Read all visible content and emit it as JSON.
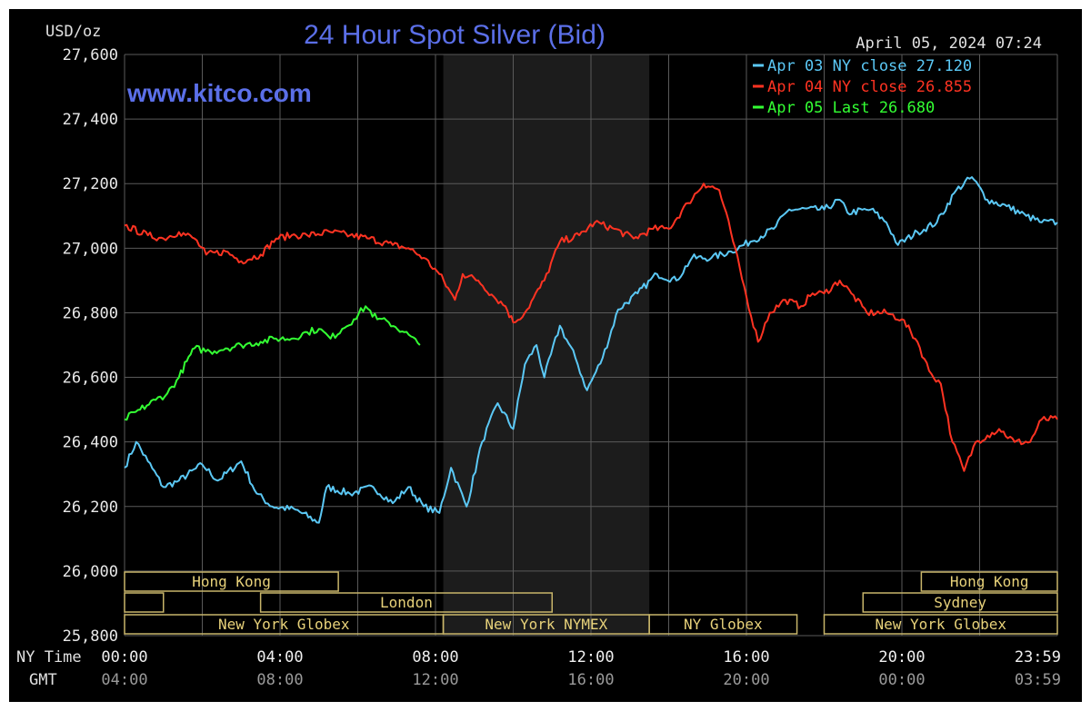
{
  "chart_data": {
    "type": "line",
    "title": "24 Hour Spot Silver (Bid)",
    "unit_label": "USD/oz",
    "watermark": "www.kitco.com",
    "timestamp": "April 05, 2024 07:24",
    "ylim": [
      25.8,
      27.6
    ],
    "y_ticks": [
      "27,600",
      "27,400",
      "27,200",
      "27,000",
      "26,800",
      "26,600",
      "26,400",
      "26,200",
      "26,000",
      "25,800"
    ],
    "x_range_hours": [
      0,
      24
    ],
    "x_ticks_ny": [
      "00:00",
      "04:00",
      "08:00",
      "12:00",
      "16:00",
      "20:00",
      "23:59"
    ],
    "x_ticks_gmt": [
      "04:00",
      "08:00",
      "12:00",
      "16:00",
      "20:00",
      "00:00",
      "03:59"
    ],
    "x_tick_hours": [
      0,
      4,
      8,
      12,
      16,
      20,
      24
    ],
    "row_labels": {
      "ny": "NY Time",
      "gmt": "GMT"
    },
    "grid": true,
    "legend_position": "top-right",
    "shaded_hours": [
      8.2,
      13.5
    ],
    "series": [
      {
        "name": "Apr 03 NY close 27.120",
        "color": "#5bc8f5",
        "points": [
          [
            0,
            26.32
          ],
          [
            0.3,
            26.4
          ],
          [
            0.6,
            26.34
          ],
          [
            1.0,
            26.26
          ],
          [
            1.4,
            26.28
          ],
          [
            2.0,
            26.33
          ],
          [
            2.4,
            26.28
          ],
          [
            3.0,
            26.34
          ],
          [
            3.4,
            26.24
          ],
          [
            3.8,
            26.2
          ],
          [
            4.4,
            26.19
          ],
          [
            5.0,
            26.15
          ],
          [
            5.2,
            26.26
          ],
          [
            5.8,
            26.24
          ],
          [
            6.4,
            26.26
          ],
          [
            6.9,
            26.21
          ],
          [
            7.3,
            26.26
          ],
          [
            7.7,
            26.2
          ],
          [
            8.1,
            26.18
          ],
          [
            8.4,
            26.32
          ],
          [
            8.8,
            26.2
          ],
          [
            9.2,
            26.4
          ],
          [
            9.6,
            26.52
          ],
          [
            10.0,
            26.44
          ],
          [
            10.3,
            26.64
          ],
          [
            10.6,
            26.7
          ],
          [
            10.8,
            26.6
          ],
          [
            11.2,
            26.76
          ],
          [
            11.6,
            26.66
          ],
          [
            11.9,
            26.56
          ],
          [
            12.3,
            26.66
          ],
          [
            12.7,
            26.81
          ],
          [
            13.2,
            26.86
          ],
          [
            13.7,
            26.92
          ],
          [
            14.2,
            26.9
          ],
          [
            14.6,
            26.97
          ],
          [
            15.1,
            26.97
          ],
          [
            15.6,
            26.99
          ],
          [
            16.1,
            27.02
          ],
          [
            16.7,
            27.06
          ],
          [
            17.1,
            27.12
          ],
          [
            18.0,
            27.12
          ],
          [
            18.4,
            27.15
          ],
          [
            18.6,
            27.11
          ],
          [
            19.2,
            27.12
          ],
          [
            19.6,
            27.08
          ],
          [
            19.9,
            27.01
          ],
          [
            20.4,
            27.05
          ],
          [
            20.9,
            27.08
          ],
          [
            21.4,
            27.18
          ],
          [
            21.8,
            27.22
          ],
          [
            22.2,
            27.15
          ],
          [
            22.7,
            27.13
          ],
          [
            23.2,
            27.1
          ],
          [
            23.6,
            27.08
          ],
          [
            24.0,
            27.08
          ]
        ]
      },
      {
        "name": "Apr 04 NY close 26.855",
        "color": "#ff3322",
        "points": [
          [
            0,
            27.07
          ],
          [
            0.6,
            27.04
          ],
          [
            1.0,
            27.03
          ],
          [
            1.4,
            27.05
          ],
          [
            1.8,
            27.03
          ],
          [
            2.1,
            26.98
          ],
          [
            2.6,
            26.99
          ],
          [
            3.0,
            26.96
          ],
          [
            3.5,
            26.98
          ],
          [
            3.9,
            27.03
          ],
          [
            4.3,
            27.04
          ],
          [
            4.7,
            27.04
          ],
          [
            5.3,
            27.05
          ],
          [
            5.8,
            27.04
          ],
          [
            6.3,
            27.03
          ],
          [
            6.9,
            27.01
          ],
          [
            7.3,
            27.0
          ],
          [
            7.7,
            26.97
          ],
          [
            8.1,
            26.92
          ],
          [
            8.5,
            26.84
          ],
          [
            8.7,
            26.92
          ],
          [
            9.1,
            26.9
          ],
          [
            9.5,
            26.85
          ],
          [
            9.8,
            26.82
          ],
          [
            10.0,
            26.77
          ],
          [
            10.3,
            26.8
          ],
          [
            10.8,
            26.9
          ],
          [
            11.2,
            27.02
          ],
          [
            11.7,
            27.04
          ],
          [
            12.1,
            27.08
          ],
          [
            12.6,
            27.06
          ],
          [
            13.1,
            27.03
          ],
          [
            13.6,
            27.06
          ],
          [
            14.0,
            27.06
          ],
          [
            14.5,
            27.14
          ],
          [
            14.9,
            27.2
          ],
          [
            15.3,
            27.18
          ],
          [
            15.6,
            27.05
          ],
          [
            16.0,
            26.85
          ],
          [
            16.3,
            26.71
          ],
          [
            16.6,
            26.8
          ],
          [
            17.0,
            26.84
          ],
          [
            17.4,
            26.82
          ],
          [
            17.7,
            26.86
          ],
          [
            18.0,
            26.86
          ],
          [
            18.4,
            26.9
          ],
          [
            18.7,
            26.86
          ],
          [
            19.1,
            26.8
          ],
          [
            19.6,
            26.8
          ],
          [
            20.0,
            26.78
          ],
          [
            20.4,
            26.71
          ],
          [
            20.7,
            26.62
          ],
          [
            21.0,
            26.58
          ],
          [
            21.3,
            26.4
          ],
          [
            21.6,
            26.31
          ],
          [
            21.9,
            26.4
          ],
          [
            22.2,
            26.42
          ],
          [
            22.5,
            26.44
          ],
          [
            22.9,
            26.4
          ],
          [
            23.3,
            26.4
          ],
          [
            23.6,
            26.47
          ],
          [
            24.0,
            26.47
          ]
        ]
      },
      {
        "name": "Apr 05 Last 26.680",
        "color": "#33ff33",
        "points": [
          [
            0,
            26.47
          ],
          [
            0.4,
            26.5
          ],
          [
            0.8,
            26.53
          ],
          [
            1.1,
            26.55
          ],
          [
            1.4,
            26.6
          ],
          [
            1.6,
            26.65
          ],
          [
            1.8,
            26.69
          ],
          [
            2.2,
            26.68
          ],
          [
            2.6,
            26.69
          ],
          [
            3.0,
            26.7
          ],
          [
            3.5,
            26.71
          ],
          [
            3.9,
            26.72
          ],
          [
            4.3,
            26.72
          ],
          [
            4.7,
            26.74
          ],
          [
            5.0,
            26.75
          ],
          [
            5.3,
            26.72
          ],
          [
            5.6,
            26.75
          ],
          [
            5.9,
            26.78
          ],
          [
            6.2,
            26.82
          ],
          [
            6.5,
            26.78
          ],
          [
            6.8,
            26.77
          ],
          [
            7.2,
            26.74
          ],
          [
            7.6,
            26.7
          ]
        ]
      }
    ],
    "sessions": [
      {
        "label": "Hong Kong",
        "row": 0,
        "start": 0.0,
        "end": 5.5
      },
      {
        "label": "Hong Kong",
        "row": 0,
        "start": 20.5,
        "end": 24.0
      },
      {
        "label": "",
        "row": 1,
        "start": 0.0,
        "end": 1.0
      },
      {
        "label": "London",
        "row": 1,
        "start": 3.5,
        "end": 11.0
      },
      {
        "label": "Sydney",
        "row": 1,
        "start": 19.0,
        "end": 24.0
      },
      {
        "label": "New York Globex",
        "row": 2,
        "start": 0.0,
        "end": 8.2
      },
      {
        "label": "New York NYMEX",
        "row": 2,
        "start": 8.2,
        "end": 13.5
      },
      {
        "label": "NY Globex",
        "row": 2,
        "start": 13.5,
        "end": 17.3
      },
      {
        "label": "New York Globex",
        "row": 2,
        "start": 18.0,
        "end": 24.0
      }
    ]
  }
}
